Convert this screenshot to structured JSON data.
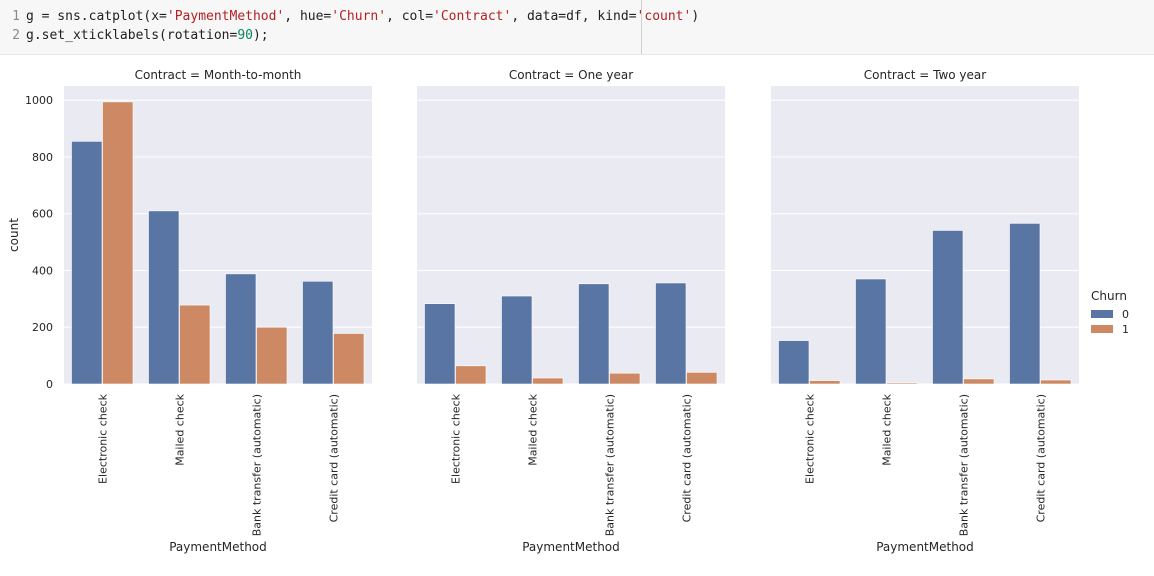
{
  "code": {
    "lines": [
      {
        "number": "1",
        "tokens": [
          {
            "text": "g = sns.catplot(x=",
            "kind": "plain"
          },
          {
            "text": "'PaymentMethod'",
            "kind": "str"
          },
          {
            "text": ", hue=",
            "kind": "plain"
          },
          {
            "text": "'Churn'",
            "kind": "str"
          },
          {
            "text": ", col=",
            "kind": "plain"
          },
          {
            "text": "'Contract'",
            "kind": "str"
          },
          {
            "text": ", data=df, kind=",
            "kind": "plain"
          },
          {
            "text": "'count'",
            "kind": "str"
          },
          {
            "text": ")",
            "kind": "plain"
          }
        ]
      },
      {
        "number": "2",
        "tokens": [
          {
            "text": "g.set_xticklabels(rotation=",
            "kind": "plain"
          },
          {
            "text": "90",
            "kind": "num"
          },
          {
            "text": ");",
            "kind": "plain"
          }
        ]
      }
    ]
  },
  "chart_data": {
    "type": "bar",
    "categories": [
      "Electronic check",
      "Mailed check",
      "Bank transfer (automatic)",
      "Credit card (automatic)"
    ],
    "xlabel": "PaymentMethod",
    "ylabel": "count",
    "ylim": [
      0,
      1050
    ],
    "yticks": [
      0,
      200,
      400,
      600,
      800,
      1000
    ],
    "grid": true,
    "legend": {
      "title": "Churn",
      "placement": "right",
      "entries": [
        "0",
        "1"
      ]
    },
    "colors": {
      "0": "#5975a4",
      "1": "#cc8963",
      "background": "#eaeaf2",
      "grid": "#ffffff"
    },
    "panels": [
      {
        "title": "Contract = Month-to-month",
        "series": [
          {
            "name": "0",
            "values": [
              855,
              610,
              388,
              362
            ]
          },
          {
            "name": "1",
            "values": [
              994,
              278,
              200,
              178
            ]
          }
        ]
      },
      {
        "title": "Contract = One year",
        "series": [
          {
            "name": "0",
            "values": [
              283,
              310,
              353,
              356
            ]
          },
          {
            "name": "1",
            "values": [
              64,
              21,
              38,
              41
            ]
          }
        ]
      },
      {
        "title": "Contract = Two year",
        "series": [
          {
            "name": "0",
            "values": [
              153,
              370,
              541,
              566
            ]
          },
          {
            "name": "1",
            "values": [
              12,
              4,
              18,
              14
            ]
          }
        ]
      }
    ]
  }
}
